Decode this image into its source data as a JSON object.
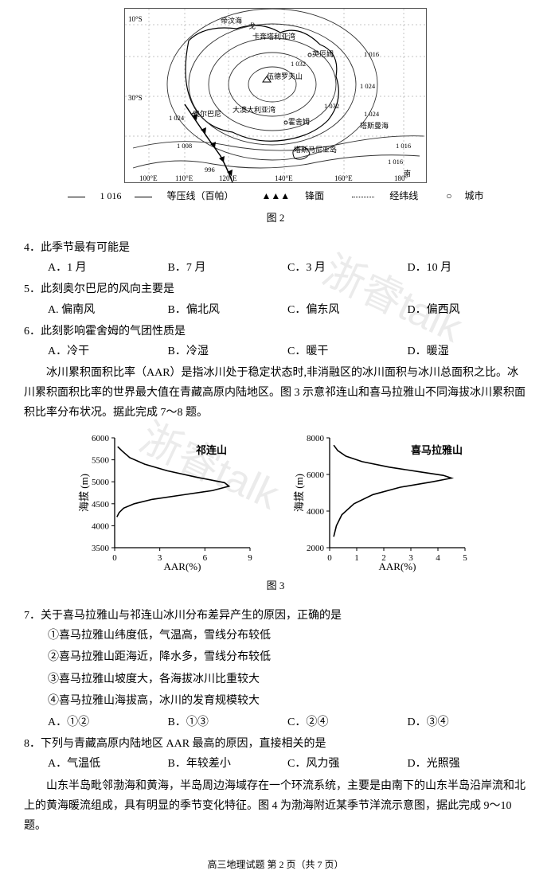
{
  "map": {
    "labels": [
      "帝汶海",
      "戈",
      "卡奔塔利亚湾",
      "英厄姆",
      "伍德罗夫山",
      "奥尔巴尼",
      "大澳大利亚湾",
      "霍舍姆",
      "塔斯曼海",
      "塔斯马尼亚岛",
      "南"
    ],
    "isobars": [
      "1 016",
      "1 024",
      "1 032",
      "1 032",
      "1 024",
      "1 016",
      "1 024",
      "1 008",
      "1 016",
      "996"
    ],
    "lons": [
      "100°E",
      "110°E",
      "120°E",
      "140°E",
      "160°E",
      "180°"
    ],
    "lats": [
      "10°S",
      "30°S"
    ],
    "contour_color": "#333",
    "coastline_color": "#000",
    "grid_color": "#888",
    "front_color": "#000"
  },
  "legend": {
    "iso": "等压线（百帕）",
    "iso_sample": "1 016",
    "front": "锋面",
    "front_symbol": "▲▲▲",
    "graticule": "经纬线",
    "city": "城市",
    "city_symbol": "○"
  },
  "fig2_caption": "图 2",
  "q4": {
    "stem": "4．此季节最有可能是",
    "A": "A．1 月",
    "B": "B．7 月",
    "C": "C．3 月",
    "D": "D．10 月"
  },
  "q5": {
    "stem": "5．此刻奥尔巴尼的风向主要是",
    "A": "A. 偏南风",
    "B": "B．偏北风",
    "C": "C．偏东风",
    "D": "D．偏西风"
  },
  "q6": {
    "stem": "6．此刻影响霍舍姆的气团性质是",
    "A": "A．冷干",
    "B": "B．冷湿",
    "C": "C．暖干",
    "D": "D．暖湿"
  },
  "passage1": "冰川累积面积比率（AAR）是指冰川处于稳定状态时,非消融区的冰川面积与冰川总面积之比。冰川累积面积比率的世界最大值在青藏高原内陆地区。图 3 示意祁连山和喜马拉雅山不同海拔冰川累积面积比率分布状况。据此完成 7～8 题。",
  "chart_qilian": {
    "title": "祁连山",
    "ylabel": "海拔 (m)",
    "xlabel": "AAR(%)",
    "y_ticks": [
      3500,
      4000,
      4500,
      5000,
      5500,
      6000
    ],
    "x_ticks": [
      0,
      3,
      6,
      9
    ],
    "ylim": [
      3500,
      6000
    ],
    "xlim": [
      0,
      9
    ],
    "line_color": "#000",
    "line_width": 1.6,
    "axis_color": "#000",
    "fontsize_label": 13,
    "fontsize_tick": 11,
    "curve": [
      [
        0.2,
        5800
      ],
      [
        0.5,
        5700
      ],
      [
        1.0,
        5550
      ],
      [
        2.0,
        5400
      ],
      [
        3.5,
        5250
      ],
      [
        5.5,
        5100
      ],
      [
        7.3,
        4980
      ],
      [
        7.6,
        4900
      ],
      [
        6.5,
        4800
      ],
      [
        4.5,
        4700
      ],
      [
        2.5,
        4600
      ],
      [
        1.3,
        4500
      ],
      [
        0.6,
        4400
      ],
      [
        0.3,
        4300
      ],
      [
        0.15,
        4200
      ]
    ]
  },
  "chart_himalaya": {
    "title": "喜马拉雅山",
    "ylabel": "海拔 (m)",
    "xlabel": "AAR(%)",
    "y_ticks": [
      2000,
      4000,
      6000,
      8000
    ],
    "x_ticks": [
      0,
      1,
      2,
      3,
      4,
      5
    ],
    "ylim": [
      2000,
      8000
    ],
    "xlim": [
      0,
      5
    ],
    "line_color": "#000",
    "line_width": 1.6,
    "axis_color": "#000",
    "fontsize_label": 13,
    "fontsize_tick": 11,
    "curve": [
      [
        0.15,
        7600
      ],
      [
        0.3,
        7300
      ],
      [
        0.6,
        7000
      ],
      [
        1.2,
        6700
      ],
      [
        2.2,
        6400
      ],
      [
        3.3,
        6150
      ],
      [
        4.2,
        5950
      ],
      [
        4.5,
        5800
      ],
      [
        3.8,
        5600
      ],
      [
        2.6,
        5300
      ],
      [
        1.6,
        4900
      ],
      [
        0.9,
        4400
      ],
      [
        0.45,
        3800
      ],
      [
        0.25,
        3200
      ],
      [
        0.15,
        2600
      ]
    ]
  },
  "fig3_caption": "图 3",
  "q7": {
    "stem": "7．关于喜马拉雅山与祁连山冰川分布差异产生的原因，正确的是",
    "s1": "①喜马拉雅山纬度低，气温高，雪线分布较低",
    "s2": "②喜马拉雅山距海近，降水多，雪线分布较低",
    "s3": "③喜马拉雅山坡度大，各海拔冰川比重较大",
    "s4": "④喜马拉雅山海拔高，冰川的发育规模较大",
    "A": "A．①②",
    "B": "B．①③",
    "C": "C．②④",
    "D": "D．③④"
  },
  "q8": {
    "stem": "8．下列与青藏高原内陆地区 AAR 最高的原因，直接相关的是",
    "A": "A．气温低",
    "B": "B．年较差小",
    "C": "C．风力强",
    "D": "D．光照强"
  },
  "passage2": "山东半岛毗邻渤海和黄海，半岛周边海域存在一个环流系统，主要是由南下的山东半岛沿岸流和北上的黄海暖流组成，具有明显的季节变化特征。图 4 为渤海附近某季节洋流示意图，据此完成 9～10 题。",
  "footer": "高三地理试题  第 2 页（共 7 页）",
  "watermark": "浙睿talk"
}
